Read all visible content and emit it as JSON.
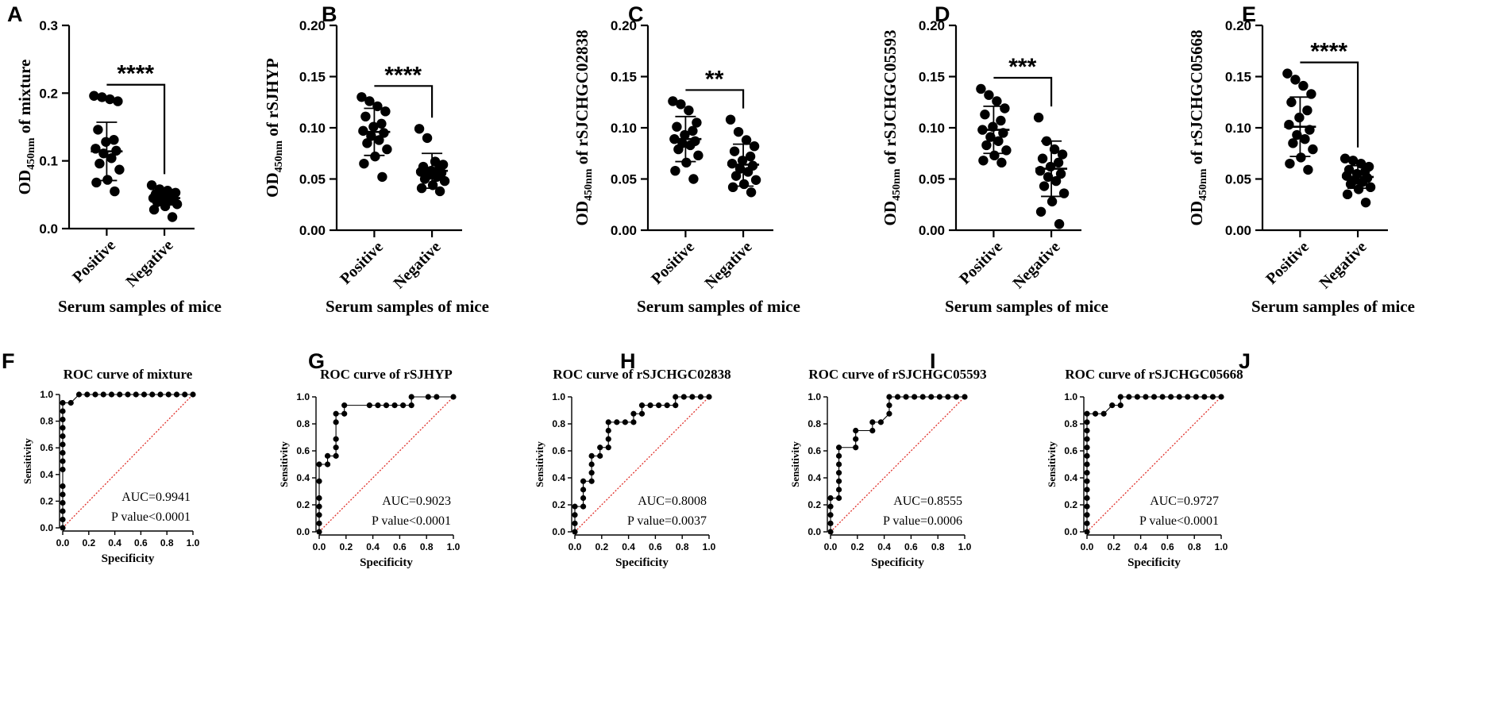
{
  "colors": {
    "ink": "#000000",
    "diagonal": "#e0302a",
    "background": "#ffffff"
  },
  "chart_data": [
    {
      "id": "A",
      "type": "scatter",
      "panel_label": "A",
      "title": "",
      "ylabel_main": "OD",
      "ylabel_sub": "450nm",
      "ylabel_rest": " of mixture",
      "xlabel": "Serum samples of mice",
      "categories": [
        "Positive",
        "Negative"
      ],
      "ylim": [
        0,
        0.3
      ],
      "yticks": [
        "0.0",
        "0.1",
        "0.2",
        "0.3"
      ],
      "significance": "****",
      "series": [
        {
          "name": "Positive",
          "mean": 0.114,
          "sd_low": 0.071,
          "sd_high": 0.157,
          "values": [
            0.196,
            0.194,
            0.191,
            0.188,
            0.146,
            0.131,
            0.128,
            0.118,
            0.115,
            0.111,
            0.104,
            0.096,
            0.087,
            0.072,
            0.068,
            0.055
          ]
        },
        {
          "name": "Negative",
          "mean": 0.045,
          "sd_low": 0.035,
          "sd_high": 0.055,
          "values": [
            0.064,
            0.058,
            0.056,
            0.053,
            0.051,
            0.049,
            0.047,
            0.045,
            0.044,
            0.042,
            0.041,
            0.039,
            0.036,
            0.033,
            0.028,
            0.017
          ]
        }
      ]
    },
    {
      "id": "B",
      "type": "scatter",
      "panel_label": "B",
      "title": "",
      "ylabel_main": "OD",
      "ylabel_sub": "450nm",
      "ylabel_rest": " of rSJHYP",
      "xlabel": "Serum samples of mice",
      "categories": [
        "Positive",
        "Negative"
      ],
      "ylim": [
        0,
        0.2
      ],
      "yticks": [
        "0.00",
        "0.05",
        "0.10",
        "0.15",
        "0.20"
      ],
      "significance": "****",
      "series": [
        {
          "name": "Positive",
          "mean": 0.096,
          "sd_low": 0.073,
          "sd_high": 0.119,
          "values": [
            0.13,
            0.126,
            0.121,
            0.116,
            0.111,
            0.104,
            0.101,
            0.097,
            0.095,
            0.092,
            0.088,
            0.085,
            0.079,
            0.072,
            0.065,
            0.052
          ]
        },
        {
          "name": "Negative",
          "mean": 0.058,
          "sd_low": 0.041,
          "sd_high": 0.075,
          "values": [
            0.099,
            0.09,
            0.067,
            0.064,
            0.062,
            0.06,
            0.058,
            0.057,
            0.056,
            0.054,
            0.052,
            0.05,
            0.048,
            0.044,
            0.041,
            0.038
          ]
        }
      ]
    },
    {
      "id": "C",
      "type": "scatter",
      "panel_label": "C",
      "title": "",
      "ylabel_main": "OD",
      "ylabel_sub": "450nm",
      "ylabel_rest": " of rSJCHGC02838",
      "xlabel": "Serum samples of mice",
      "categories": [
        "Positive",
        "Negative"
      ],
      "ylim": [
        0,
        0.2
      ],
      "yticks": [
        "0.00",
        "0.05",
        "0.10",
        "0.15",
        "0.20"
      ],
      "significance": "**",
      "series": [
        {
          "name": "Positive",
          "mean": 0.089,
          "sd_low": 0.067,
          "sd_high": 0.111,
          "values": [
            0.126,
            0.123,
            0.117,
            0.105,
            0.101,
            0.097,
            0.093,
            0.089,
            0.087,
            0.085,
            0.083,
            0.079,
            0.073,
            0.066,
            0.058,
            0.05
          ]
        },
        {
          "name": "Negative",
          "mean": 0.064,
          "sd_low": 0.043,
          "sd_high": 0.084,
          "values": [
            0.108,
            0.096,
            0.088,
            0.082,
            0.077,
            0.072,
            0.068,
            0.065,
            0.063,
            0.06,
            0.057,
            0.053,
            0.049,
            0.045,
            0.042,
            0.037
          ]
        }
      ]
    },
    {
      "id": "D",
      "type": "scatter",
      "panel_label": "D",
      "title": "",
      "ylabel_main": "OD",
      "ylabel_sub": "450nm",
      "ylabel_rest": " of rSJCHGC05593",
      "xlabel": "Serum samples of mice",
      "categories": [
        "Positive",
        "Negative"
      ],
      "ylim": [
        0,
        0.2
      ],
      "yticks": [
        "0.00",
        "0.05",
        "0.10",
        "0.15",
        "0.20"
      ],
      "significance": "***",
      "series": [
        {
          "name": "Positive",
          "mean": 0.098,
          "sd_low": 0.075,
          "sd_high": 0.121,
          "values": [
            0.138,
            0.132,
            0.126,
            0.119,
            0.113,
            0.107,
            0.101,
            0.098,
            0.095,
            0.091,
            0.087,
            0.083,
            0.078,
            0.073,
            0.068,
            0.066
          ]
        },
        {
          "name": "Negative",
          "mean": 0.06,
          "sd_low": 0.033,
          "sd_high": 0.087,
          "values": [
            0.11,
            0.087,
            0.079,
            0.074,
            0.07,
            0.066,
            0.062,
            0.058,
            0.055,
            0.052,
            0.048,
            0.043,
            0.036,
            0.028,
            0.018,
            0.006
          ]
        }
      ]
    },
    {
      "id": "E",
      "type": "scatter",
      "panel_label": "E",
      "title": "",
      "ylabel_main": "OD",
      "ylabel_sub": "450nm",
      "ylabel_rest": " of rSJCHGC05668",
      "xlabel": "Serum samples of mice",
      "categories": [
        "Positive",
        "Negative"
      ],
      "ylim": [
        0,
        0.2
      ],
      "yticks": [
        "0.00",
        "0.05",
        "0.10",
        "0.15",
        "0.20"
      ],
      "significance": "****",
      "series": [
        {
          "name": "Positive",
          "mean": 0.101,
          "sd_low": 0.072,
          "sd_high": 0.13,
          "values": [
            0.153,
            0.147,
            0.141,
            0.133,
            0.125,
            0.117,
            0.11,
            0.103,
            0.098,
            0.093,
            0.089,
            0.085,
            0.079,
            0.071,
            0.065,
            0.059
          ]
        },
        {
          "name": "Negative",
          "mean": 0.052,
          "sd_low": 0.041,
          "sd_high": 0.063,
          "values": [
            0.07,
            0.068,
            0.065,
            0.062,
            0.059,
            0.057,
            0.055,
            0.053,
            0.051,
            0.049,
            0.047,
            0.045,
            0.042,
            0.04,
            0.035,
            0.027
          ]
        }
      ]
    },
    {
      "id": "F",
      "type": "line",
      "panel_label": "F",
      "title": "ROC curve of mixture",
      "xlabel": "Specificity",
      "ylabel": "Sensitivity",
      "xlim": [
        0,
        1
      ],
      "ylim": [
        0,
        1
      ],
      "xticks": [
        "0.0",
        "0.2",
        "0.4",
        "0.6",
        "0.8",
        "1.0"
      ],
      "yticks": [
        "0.0",
        "0.2",
        "0.4",
        "0.6",
        "0.8",
        "1.0"
      ],
      "auc_text": "AUC=0.9941",
      "p_text": "P value<0.0001",
      "points": [
        [
          0,
          0
        ],
        [
          0,
          0.0625
        ],
        [
          0,
          0.125
        ],
        [
          0,
          0.1875
        ],
        [
          0,
          0.25
        ],
        [
          0,
          0.3125
        ],
        [
          0,
          0.4375
        ],
        [
          0,
          0.5
        ],
        [
          0,
          0.5625
        ],
        [
          0,
          0.625
        ],
        [
          0,
          0.6875
        ],
        [
          0,
          0.75
        ],
        [
          0,
          0.8125
        ],
        [
          0,
          0.875
        ],
        [
          0,
          0.9375
        ],
        [
          0.0625,
          0.9375
        ],
        [
          0.125,
          1
        ],
        [
          0.1875,
          1
        ],
        [
          0.25,
          1
        ],
        [
          0.3125,
          1
        ],
        [
          0.375,
          1
        ],
        [
          0.4375,
          1
        ],
        [
          0.5,
          1
        ],
        [
          0.5625,
          1
        ],
        [
          0.625,
          1
        ],
        [
          0.6875,
          1
        ],
        [
          0.75,
          1
        ],
        [
          0.8125,
          1
        ],
        [
          0.875,
          1
        ],
        [
          0.9375,
          1
        ],
        [
          1,
          1
        ]
      ]
    },
    {
      "id": "G",
      "type": "line",
      "panel_label": "G",
      "title": "ROC curve of rSJHYP",
      "xlabel": "Specificity",
      "ylabel": "Sensitivity",
      "xlim": [
        0,
        1
      ],
      "ylim": [
        0,
        1
      ],
      "xticks": [
        "0.0",
        "0.2",
        "0.4",
        "0.6",
        "0.8",
        "1.0"
      ],
      "yticks": [
        "0.0",
        "0.2",
        "0.4",
        "0.6",
        "0.8",
        "1.0"
      ],
      "auc_text": "AUC=0.9023",
      "p_text": "P value<0.0001",
      "points": [
        [
          0,
          0
        ],
        [
          0,
          0.0625
        ],
        [
          0,
          0.125
        ],
        [
          0,
          0.1875
        ],
        [
          0,
          0.25
        ],
        [
          0,
          0.375
        ],
        [
          0,
          0.5
        ],
        [
          0.0625,
          0.5
        ],
        [
          0.0625,
          0.5625
        ],
        [
          0.125,
          0.5625
        ],
        [
          0.125,
          0.625
        ],
        [
          0.125,
          0.6875
        ],
        [
          0.125,
          0.8125
        ],
        [
          0.125,
          0.875
        ],
        [
          0.1875,
          0.875
        ],
        [
          0.1875,
          0.9375
        ],
        [
          0.375,
          0.9375
        ],
        [
          0.4375,
          0.9375
        ],
        [
          0.5,
          0.9375
        ],
        [
          0.5625,
          0.9375
        ],
        [
          0.625,
          0.9375
        ],
        [
          0.6875,
          0.9375
        ],
        [
          0.6875,
          1
        ],
        [
          0.8125,
          1
        ],
        [
          0.875,
          1
        ],
        [
          1,
          1
        ]
      ]
    },
    {
      "id": "H",
      "type": "line",
      "panel_label": "H",
      "title": "ROC curve of rSJCHGC02838",
      "xlabel": "Specificity",
      "ylabel": "Sensitivity",
      "xlim": [
        0,
        1
      ],
      "ylim": [
        0,
        1
      ],
      "xticks": [
        "0.0",
        "0.2",
        "0.4",
        "0.6",
        "0.8",
        "1.0"
      ],
      "yticks": [
        "0.0",
        "0.2",
        "0.4",
        "0.6",
        "0.8",
        "1.0"
      ],
      "auc_text": "AUC=0.8008",
      "p_text": "P value=0.0037",
      "points": [
        [
          0,
          0
        ],
        [
          0,
          0.0625
        ],
        [
          0,
          0.125
        ],
        [
          0,
          0.1875
        ],
        [
          0.0625,
          0.1875
        ],
        [
          0.0625,
          0.25
        ],
        [
          0.0625,
          0.3125
        ],
        [
          0.0625,
          0.375
        ],
        [
          0.125,
          0.375
        ],
        [
          0.125,
          0.4375
        ],
        [
          0.125,
          0.5
        ],
        [
          0.125,
          0.5625
        ],
        [
          0.1875,
          0.5625
        ],
        [
          0.1875,
          0.625
        ],
        [
          0.25,
          0.625
        ],
        [
          0.25,
          0.6875
        ],
        [
          0.25,
          0.75
        ],
        [
          0.25,
          0.8125
        ],
        [
          0.3125,
          0.8125
        ],
        [
          0.375,
          0.8125
        ],
        [
          0.4375,
          0.8125
        ],
        [
          0.4375,
          0.875
        ],
        [
          0.5,
          0.875
        ],
        [
          0.5,
          0.9375
        ],
        [
          0.5625,
          0.9375
        ],
        [
          0.625,
          0.9375
        ],
        [
          0.6875,
          0.9375
        ],
        [
          0.75,
          0.9375
        ],
        [
          0.75,
          1
        ],
        [
          0.8125,
          1
        ],
        [
          0.875,
          1
        ],
        [
          0.9375,
          1
        ],
        [
          1,
          1
        ]
      ]
    },
    {
      "id": "I",
      "type": "line",
      "panel_label": "I",
      "title": "ROC curve of rSJCHGC05593",
      "xlabel": "Specificity",
      "ylabel": "Sensitivity",
      "xlim": [
        0,
        1
      ],
      "ylim": [
        0,
        1
      ],
      "xticks": [
        "0.0",
        "0.2",
        "0.4",
        "0.6",
        "0.8",
        "1.0"
      ],
      "yticks": [
        "0.0",
        "0.2",
        "0.4",
        "0.6",
        "0.8",
        "1.0"
      ],
      "auc_text": "AUC=0.8555",
      "p_text": "P value=0.0006",
      "points": [
        [
          0,
          0
        ],
        [
          0,
          0.0625
        ],
        [
          0,
          0.125
        ],
        [
          0,
          0.1875
        ],
        [
          0,
          0.25
        ],
        [
          0.0625,
          0.25
        ],
        [
          0.0625,
          0.3125
        ],
        [
          0.0625,
          0.375
        ],
        [
          0.0625,
          0.4375
        ],
        [
          0.0625,
          0.5
        ],
        [
          0.0625,
          0.5625
        ],
        [
          0.0625,
          0.625
        ],
        [
          0.1875,
          0.625
        ],
        [
          0.1875,
          0.6875
        ],
        [
          0.1875,
          0.75
        ],
        [
          0.3125,
          0.75
        ],
        [
          0.3125,
          0.8125
        ],
        [
          0.375,
          0.8125
        ],
        [
          0.4375,
          0.875
        ],
        [
          0.4375,
          0.9375
        ],
        [
          0.4375,
          1
        ],
        [
          0.5,
          1
        ],
        [
          0.5625,
          1
        ],
        [
          0.625,
          1
        ],
        [
          0.6875,
          1
        ],
        [
          0.75,
          1
        ],
        [
          0.8125,
          1
        ],
        [
          0.875,
          1
        ],
        [
          0.9375,
          1
        ],
        [
          1,
          1
        ]
      ]
    },
    {
      "id": "J",
      "type": "line",
      "panel_label": "J",
      "title": "ROC curve of rSJCHGC05668",
      "xlabel": "Specificity",
      "ylabel": "Sensitivity",
      "xlim": [
        0,
        1
      ],
      "ylim": [
        0,
        1
      ],
      "xticks": [
        "0.0",
        "0.2",
        "0.4",
        "0.6",
        "0.8",
        "1.0"
      ],
      "yticks": [
        "0.0",
        "0.2",
        "0.4",
        "0.6",
        "0.8",
        "1.0"
      ],
      "auc_text": "AUC=0.9727",
      "p_text": "P value<0.0001",
      "points": [
        [
          0,
          0
        ],
        [
          0,
          0.0625
        ],
        [
          0,
          0.125
        ],
        [
          0,
          0.1875
        ],
        [
          0,
          0.25
        ],
        [
          0,
          0.3125
        ],
        [
          0,
          0.375
        ],
        [
          0,
          0.4375
        ],
        [
          0,
          0.5
        ],
        [
          0,
          0.5625
        ],
        [
          0,
          0.625
        ],
        [
          0,
          0.6875
        ],
        [
          0,
          0.75
        ],
        [
          0,
          0.8125
        ],
        [
          0,
          0.875
        ],
        [
          0.0625,
          0.875
        ],
        [
          0.125,
          0.875
        ],
        [
          0.1875,
          0.9375
        ],
        [
          0.25,
          0.9375
        ],
        [
          0.25,
          1
        ],
        [
          0.3125,
          1
        ],
        [
          0.375,
          1
        ],
        [
          0.4375,
          1
        ],
        [
          0.5,
          1
        ],
        [
          0.5625,
          1
        ],
        [
          0.625,
          1
        ],
        [
          0.6875,
          1
        ],
        [
          0.75,
          1
        ],
        [
          0.8125,
          1
        ],
        [
          0.875,
          1
        ],
        [
          0.9375,
          1
        ],
        [
          1,
          1
        ]
      ]
    }
  ]
}
